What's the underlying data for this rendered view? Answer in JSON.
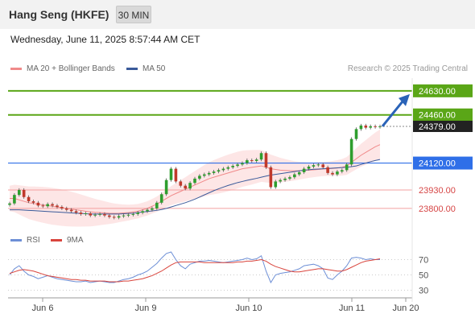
{
  "header": {
    "title": "Hang Seng (HKFE)",
    "timeframe": "30 MIN",
    "datetime": "Wednesday, June 11, 2025 8:57:44 AM CET"
  },
  "legend": {
    "ma20": "MA 20 + Bollinger Bands",
    "ma50": "MA 50",
    "credit": "Research © 2025 Trading Central"
  },
  "rsi_legend": {
    "rsi": "RSI",
    "ma": "9MA"
  },
  "colors": {
    "up": "#2e9e2e",
    "down": "#c0392b",
    "green_level": "#5aa617",
    "blue_level": "#2f6fe8",
    "red_level": "#f3a0a0",
    "ma20": "#f08a8a",
    "ma50": "#3a5a9a",
    "bands": "#fde2e2",
    "rsi": "#6d8fd6",
    "rsi_ma": "#d9443c",
    "arrow": "#2a63b8"
  },
  "chart_data": [
    {
      "type": "candlestick",
      "y_range": [
        23640,
        24720
      ],
      "x_ticks": [
        "Jun 6",
        "Jun 9",
        "Jun 10",
        "Jun 11",
        "Jun 20"
      ],
      "current_price": {
        "value": 24379.0,
        "label": "24379.00"
      },
      "levels": [
        {
          "value": 24630.0,
          "label": "24630.00",
          "kind": "resistance"
        },
        {
          "value": 24460.0,
          "label": "24460.00",
          "kind": "resistance"
        },
        {
          "value": 24120.0,
          "label": "24120.00",
          "kind": "pivot"
        },
        {
          "value": 23930.0,
          "label": "23930.00",
          "kind": "support"
        },
        {
          "value": 23800.0,
          "label": "23800.00",
          "kind": "support"
        }
      ],
      "closes": [
        23835,
        23895,
        23930,
        23880,
        23850,
        23840,
        23820,
        23815,
        23830,
        23820,
        23810,
        23800,
        23790,
        23780,
        23770,
        23760,
        23765,
        23750,
        23755,
        23760,
        23750,
        23740,
        23735,
        23745,
        23750,
        23755,
        23760,
        23770,
        23780,
        23790,
        23800,
        23840,
        23900,
        24000,
        24080,
        23990,
        23960,
        23940,
        23980,
        24010,
        24030,
        24040,
        24050,
        24060,
        24070,
        24080,
        24090,
        24100,
        24110,
        24120,
        24140,
        24135,
        24145,
        24190,
        24090,
        23950,
        23990,
        24000,
        24010,
        24020,
        24040,
        24055,
        24080,
        24095,
        24105,
        24110,
        24090,
        24050,
        24040,
        24060,
        24070,
        24110,
        24290,
        24360,
        24385,
        24370,
        24380,
        24375,
        24379
      ],
      "ma20": [
        23870,
        23870,
        23860,
        23850,
        23840,
        23835,
        23830,
        23825,
        23820,
        23815,
        23810,
        23805,
        23800,
        23795,
        23790,
        23785,
        23780,
        23775,
        23772,
        23770,
        23768,
        23766,
        23765,
        23766,
        23768,
        23770,
        23775,
        23780,
        23790,
        23800,
        23815,
        23830,
        23850,
        23870,
        23890,
        23905,
        23920,
        23935,
        23950,
        23965,
        23980,
        23995,
        24010,
        24020,
        24030,
        24040,
        24050,
        24060,
        24070,
        24080,
        24085,
        24090,
        24095,
        24100,
        24090,
        24080,
        24075,
        24070,
        24068,
        24066,
        24065,
        24066,
        24068,
        24070,
        24072,
        24075,
        24078,
        24080,
        24082,
        24085,
        24090,
        24100,
        24125,
        24150,
        24175,
        24195,
        24215,
        24235,
        24250
      ],
      "ma50": [
        23790,
        23790,
        23790,
        23788,
        23786,
        23784,
        23782,
        23780,
        23778,
        23776,
        23774,
        23772,
        23770,
        23768,
        23766,
        23764,
        23762,
        23760,
        23760,
        23760,
        23760,
        23760,
        23760,
        23760,
        23762,
        23764,
        23766,
        23770,
        23774,
        23778,
        23782,
        23786,
        23792,
        23800,
        23810,
        23820,
        23830,
        23840,
        23852,
        23865,
        23880,
        23895,
        23910,
        23925,
        23938,
        23950,
        23962,
        23972,
        23982,
        23990,
        23998,
        24005,
        24012,
        24020,
        24028,
        24035,
        24040,
        24045,
        24050,
        24055,
        24060,
        24065,
        24070,
        24073,
        24076,
        24078,
        24080,
        24082,
        24084,
        24086,
        24088,
        24090,
        24095,
        24100,
        24110,
        24120,
        24130,
        24138,
        24145
      ]
    },
    {
      "type": "line",
      "name": "RSI",
      "y_range": [
        20,
        80
      ],
      "y_ticks": [
        70,
        50,
        30
      ],
      "series": [
        {
          "name": "RSI",
          "values": [
            50,
            58,
            62,
            55,
            50,
            48,
            45,
            47,
            49,
            47,
            45,
            44,
            43,
            42,
            41,
            41,
            42,
            40,
            41,
            42,
            41,
            40,
            40,
            42,
            44,
            45,
            47,
            50,
            52,
            55,
            60,
            65,
            72,
            78,
            80,
            70,
            62,
            58,
            64,
            66,
            68,
            68,
            69,
            68,
            67,
            66,
            67,
            68,
            69,
            70,
            72,
            70,
            71,
            75,
            55,
            40,
            50,
            52,
            53,
            54,
            56,
            58,
            62,
            63,
            64,
            62,
            58,
            46,
            44,
            50,
            55,
            62,
            72,
            73,
            72,
            70,
            71,
            70,
            70
          ]
        },
        {
          "name": "9MA",
          "values": [
            52,
            54,
            56,
            57,
            56,
            55,
            53,
            51,
            49,
            48,
            47,
            46,
            45,
            44,
            44,
            43,
            43,
            42,
            42,
            42,
            42,
            41,
            41,
            41,
            42,
            42,
            43,
            44,
            45,
            47,
            49,
            52,
            55,
            59,
            63,
            66,
            67,
            67,
            67,
            67,
            67,
            66,
            66,
            66,
            66,
            66,
            66,
            66,
            67,
            67,
            68,
            68,
            69,
            70,
            68,
            64,
            61,
            59,
            57,
            55,
            54,
            54,
            55,
            56,
            57,
            58,
            58,
            57,
            56,
            55,
            55,
            57,
            60,
            63,
            66,
            68,
            69,
            70,
            71
          ]
        }
      ]
    }
  ]
}
